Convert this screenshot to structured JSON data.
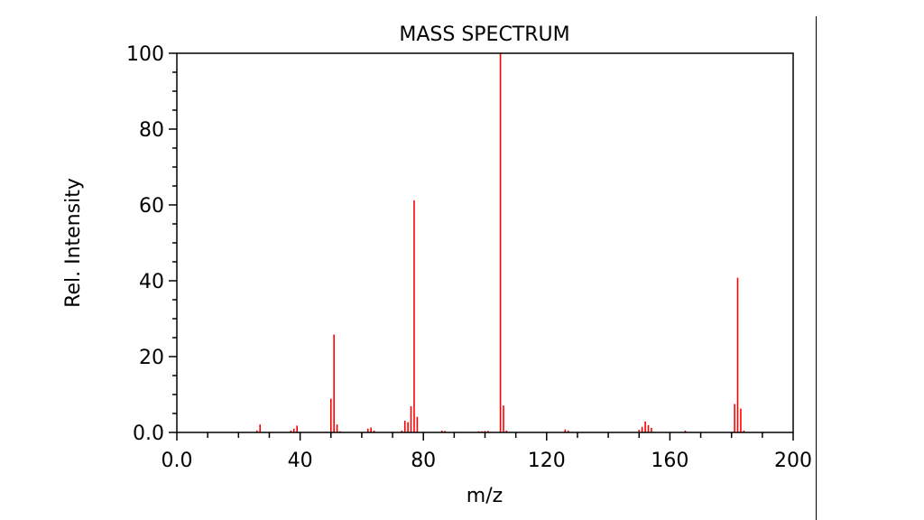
{
  "chart_data": {
    "type": "bar",
    "title": "MASS SPECTRUM",
    "xlabel": "m/z",
    "ylabel": "Rel. Intensity",
    "xlim": [
      0,
      200
    ],
    "ylim": [
      0,
      100
    ],
    "xticks": [
      {
        "v": 0,
        "label": "0.0"
      },
      {
        "v": 40,
        "label": "40"
      },
      {
        "v": 80,
        "label": "80"
      },
      {
        "v": 120,
        "label": "120"
      },
      {
        "v": 160,
        "label": "160"
      },
      {
        "v": 200,
        "label": "200"
      }
    ],
    "yticks": [
      {
        "v": 0,
        "label": "0.0"
      },
      {
        "v": 20,
        "label": "20"
      },
      {
        "v": 40,
        "label": "40"
      },
      {
        "v": 60,
        "label": "60"
      },
      {
        "v": 80,
        "label": "80"
      },
      {
        "v": 100,
        "label": "100"
      }
    ],
    "grid": false,
    "color": "#ff0000",
    "peaks": [
      [
        26,
        0.5
      ],
      [
        27,
        2.1
      ],
      [
        37,
        0.5
      ],
      [
        38,
        1.0
      ],
      [
        39,
        1.8
      ],
      [
        50,
        8.9
      ],
      [
        51,
        25.8
      ],
      [
        52,
        2.1
      ],
      [
        53,
        0.3
      ],
      [
        62,
        1.0
      ],
      [
        63,
        1.3
      ],
      [
        64,
        0.5
      ],
      [
        73,
        0.5
      ],
      [
        74,
        3.1
      ],
      [
        75,
        2.7
      ],
      [
        76,
        6.9
      ],
      [
        77,
        61.2
      ],
      [
        78,
        4.1
      ],
      [
        86,
        0.5
      ],
      [
        87,
        0.4
      ],
      [
        98,
        0.3
      ],
      [
        99,
        0.3
      ],
      [
        100,
        0.4
      ],
      [
        101,
        0.4
      ],
      [
        105,
        100
      ],
      [
        106,
        7.1
      ],
      [
        107,
        0.5
      ],
      [
        126,
        0.8
      ],
      [
        127,
        0.5
      ],
      [
        150,
        0.7
      ],
      [
        151,
        1.5
      ],
      [
        152,
        2.9
      ],
      [
        153,
        1.9
      ],
      [
        154,
        1.2
      ],
      [
        165,
        0.5
      ],
      [
        181,
        7.5
      ],
      [
        182,
        40.8
      ],
      [
        183,
        6.3
      ],
      [
        184,
        0.5
      ]
    ]
  }
}
